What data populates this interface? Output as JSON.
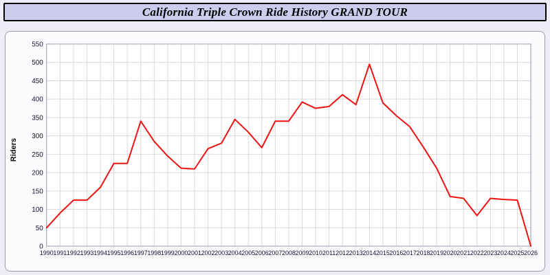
{
  "title_bar": {
    "title": "California Triple Crown Ride History GRAND TOUR"
  },
  "chart_data": {
    "type": "line",
    "title": "California Triple Crown Ride History GRAND TOUR",
    "xlabel": "",
    "ylabel": "Riders",
    "ylim": [
      0,
      550
    ],
    "ytick_step": 50,
    "grid": true,
    "legend": "none",
    "line_color": "#ee1111",
    "grid_color": "#d9d9d9",
    "frame_color": "#9a9aae",
    "tick_color": "#11112b",
    "plot_bg": "#ffffff",
    "categories": [
      1990,
      1991,
      1992,
      1993,
      1994,
      1995,
      1996,
      1997,
      1998,
      1999,
      2000,
      2001,
      2002,
      2003,
      2004,
      2005,
      2006,
      2007,
      2008,
      2009,
      2010,
      2011,
      2012,
      2013,
      2014,
      2015,
      2016,
      2017,
      2018,
      2019,
      2020,
      2021,
      2022,
      2023,
      2024,
      2025,
      2026
    ],
    "values": [
      50,
      90,
      125,
      125,
      160,
      225,
      225,
      340,
      285,
      245,
      212,
      210,
      265,
      280,
      345,
      310,
      268,
      340,
      340,
      392,
      375,
      380,
      412,
      385,
      495,
      390,
      355,
      325,
      270,
      212,
      135,
      130,
      83,
      130,
      127,
      125,
      0
    ]
  }
}
